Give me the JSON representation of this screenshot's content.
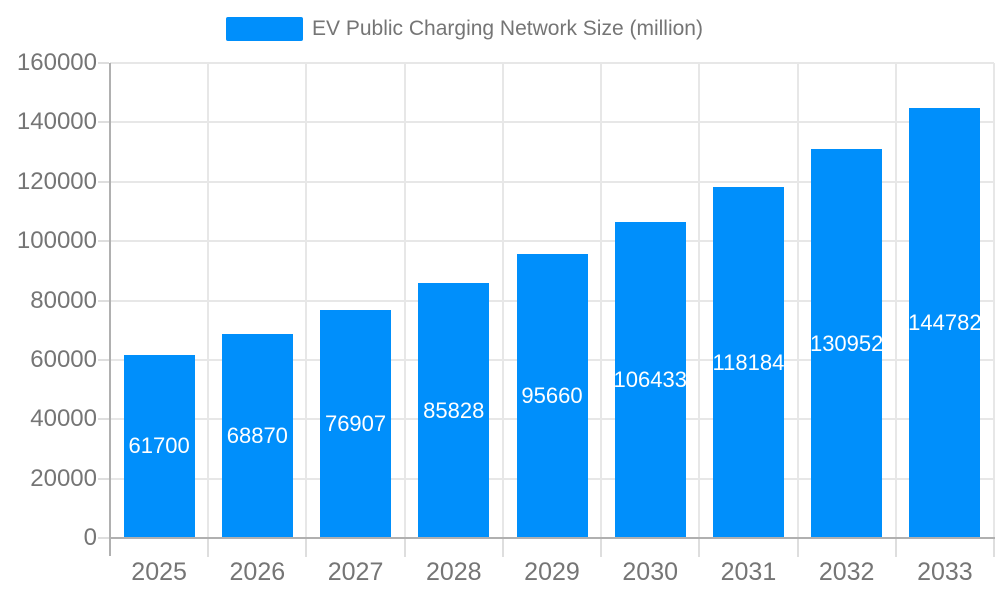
{
  "chart_data": {
    "type": "bar",
    "title": "EV Public Charging Network Size (million)",
    "categories": [
      "2025",
      "2026",
      "2027",
      "2028",
      "2029",
      "2030",
      "2031",
      "2032",
      "2033"
    ],
    "series": [
      {
        "name": "EV Public Charging Network Size (million)",
        "values": [
          61700,
          68870,
          76907,
          85828,
          95660,
          106433,
          118184,
          130952,
          144782
        ]
      }
    ],
    "data_labels_shown": true,
    "xlabel": "",
    "ylabel": "",
    "ylim": [
      0,
      160000
    ],
    "yticks": [
      0,
      20000,
      40000,
      60000,
      80000,
      100000,
      120000,
      140000,
      160000
    ],
    "grid": true,
    "legend_position": "top",
    "colors": {
      "bar": "#008FFB",
      "bar_label": "#ffffff",
      "axis_text": "#757575",
      "grid_line": "#e7e7e7",
      "axis_line": "#b0b0b0",
      "tick": "#dedede",
      "background": "#ffffff"
    }
  }
}
